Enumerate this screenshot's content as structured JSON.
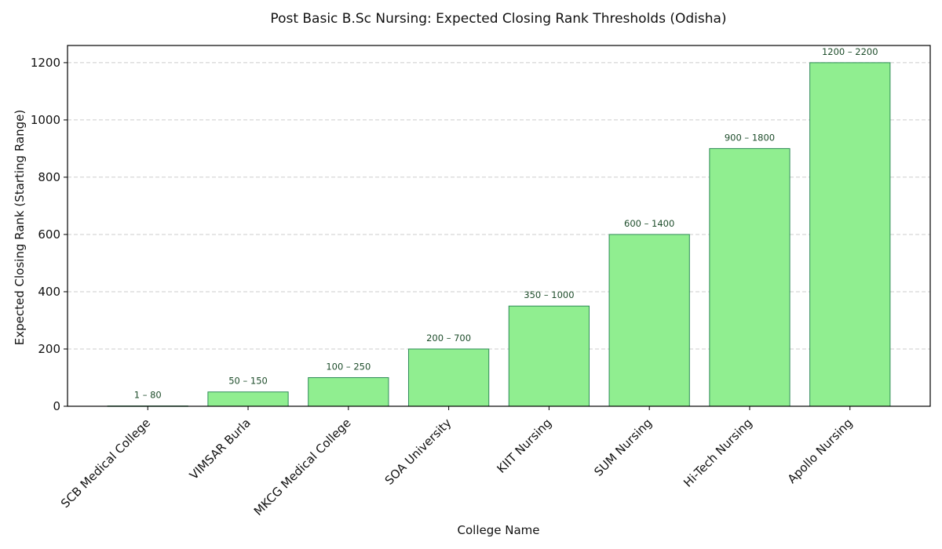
{
  "chart_data": {
    "type": "bar",
    "title": "Post Basic B.Sc Nursing: Expected Closing Rank Thresholds (Odisha)",
    "xlabel": "College Name",
    "ylabel": "Expected Closing Rank (Starting Range)",
    "ylim": [
      0,
      1260
    ],
    "yticks": [
      0,
      200,
      400,
      600,
      800,
      1000,
      1200
    ],
    "grid": "y-axis dashed",
    "categories": [
      "SCB Medical College",
      "VIMSAR Burla",
      "MKCG Medical College",
      "SOA University",
      "KIIT Nursing",
      "SUM Nursing",
      "Hi-Tech Nursing",
      "Apollo Nursing"
    ],
    "values": [
      1,
      50,
      100,
      200,
      350,
      600,
      900,
      1200
    ],
    "data_labels": [
      "1 – 80",
      "50 – 150",
      "100 – 250",
      "200 – 700",
      "350 – 1000",
      "600 – 1400",
      "900 – 1800",
      "1200 – 2200"
    ],
    "bar_color": "#90ee90",
    "bar_edge_color": "#2e8b57"
  }
}
